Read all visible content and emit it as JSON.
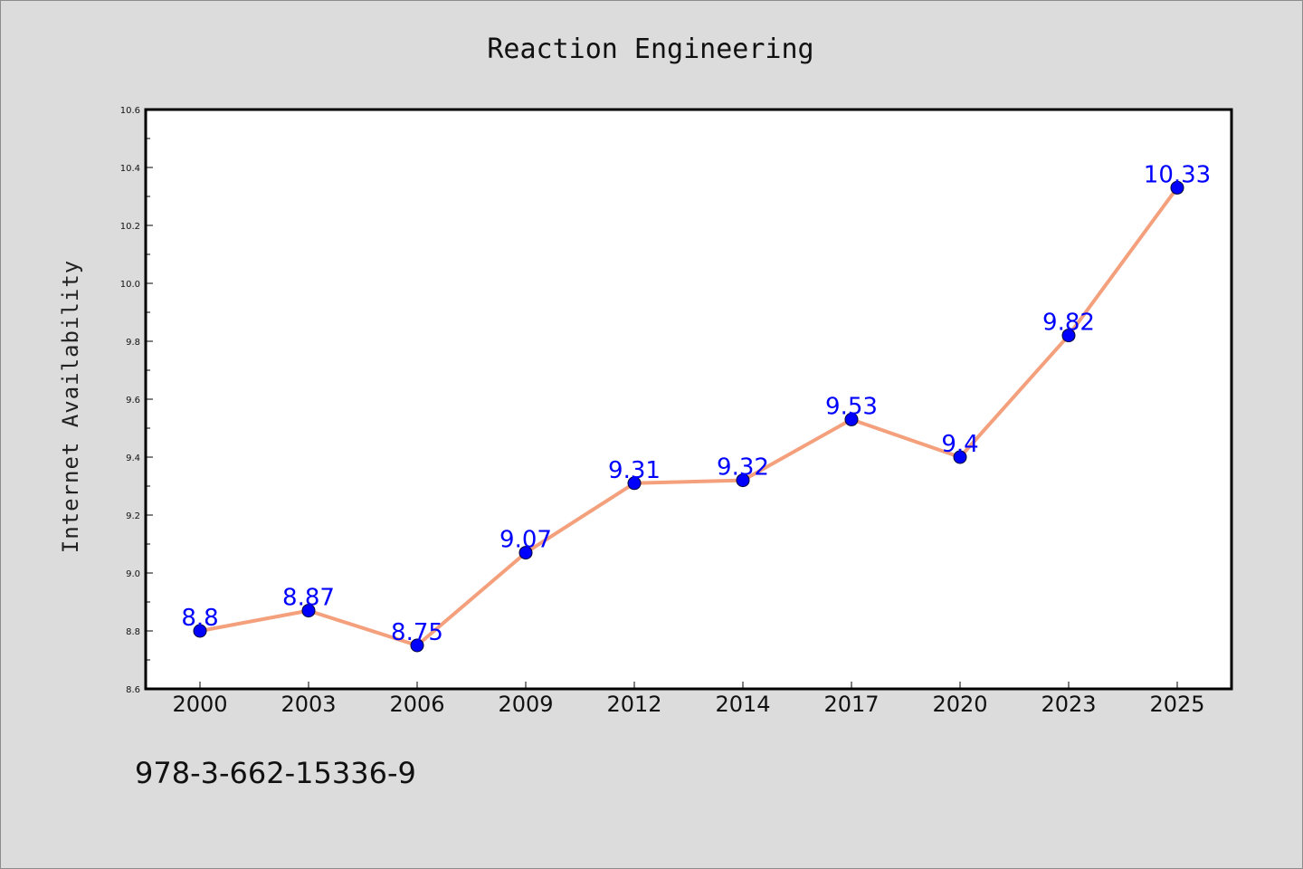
{
  "chart_data": {
    "type": "line",
    "title": "Reaction Engineering",
    "xlabel": "",
    "ylabel": "Internet Availability",
    "categories": [
      "2000",
      "2003",
      "2006",
      "2009",
      "2012",
      "2014",
      "2017",
      "2020",
      "2023",
      "2025"
    ],
    "series": [
      {
        "values": [
          8.8,
          8.87,
          8.75,
          9.07,
          9.31,
          9.32,
          9.53,
          9.4,
          9.82,
          10.33
        ],
        "data_labels": [
          "8.8",
          "8.87",
          "8.75",
          "9.07",
          "9.31",
          "9.32",
          "9.53",
          "9.4",
          "9.82",
          "10.33"
        ],
        "line_color": "#f4a07c",
        "marker_color": "#0000ff"
      }
    ],
    "ylim": [
      8.6,
      10.6
    ],
    "yticks": [
      8.6,
      8.8,
      9.0,
      9.2,
      9.4,
      9.6,
      9.8,
      10.0,
      10.2,
      10.4,
      10.6
    ],
    "ytick_labels": [
      "8.6",
      "8.8",
      "9.0",
      "9.2",
      "9.4",
      "9.6",
      "9.8",
      "10.0",
      "10.2",
      "10.4",
      "10.6"
    ],
    "grid": false,
    "legend": "none"
  },
  "footer": {
    "isbn": "978-3-662-15336-9"
  },
  "colors": {
    "background": "#dcdcdc",
    "plot_background": "#ffffff",
    "line": "#f4a07c",
    "marker": "#0000ff",
    "data_label": "#0000ff"
  }
}
